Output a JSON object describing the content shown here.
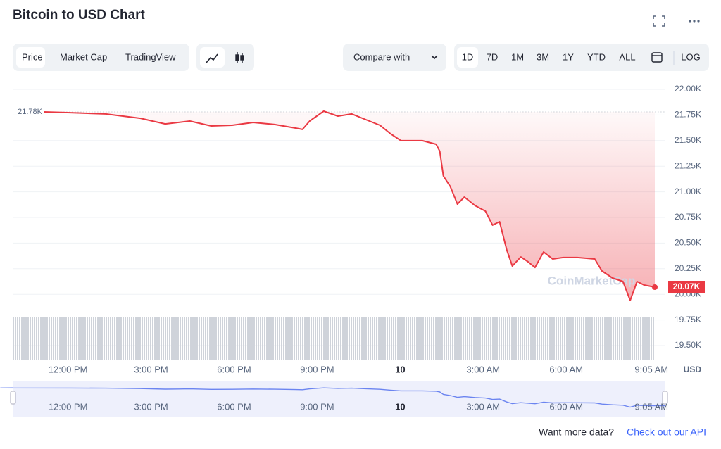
{
  "header": {
    "title": "Bitcoin to USD Chart"
  },
  "toolbar": {
    "tabs": [
      "Price",
      "Market Cap",
      "TradingView"
    ],
    "compare": "Compare with",
    "ranges": [
      "1D",
      "7D",
      "1M",
      "3M",
      "1Y",
      "YTD",
      "ALL"
    ],
    "log": "LOG"
  },
  "chart_data": {
    "type": "line",
    "color": "#ea3943",
    "watermark": "CoinMarketCap",
    "y_axis_label": "USD",
    "x": [
      11.13,
      12.08,
      13.35,
      14.62,
      15.51,
      16.4,
      17.17,
      17.93,
      18.69,
      19.46,
      20.22,
      20.47,
      20.73,
      21.24,
      21.75,
      22.25,
      22.76,
      23.27,
      23.65,
      24.03,
      24.8,
      25.3,
      25.43,
      25.56,
      25.81,
      26.07,
      26.32,
      26.7,
      27.08,
      27.34,
      27.59,
      27.85,
      28.05,
      28.36,
      28.62,
      28.87,
      29.18,
      29.51,
      29.89,
      30.4,
      31.03,
      31.29,
      31.67,
      32.05,
      32.31,
      32.56,
      32.81,
      33.2
    ],
    "values": [
      21780,
      21773,
      21760,
      21718,
      21663,
      21691,
      21643,
      21650,
      21677,
      21657,
      21622,
      21609,
      21691,
      21787,
      21739,
      21760,
      21705,
      21650,
      21567,
      21499,
      21499,
      21464,
      21396,
      21155,
      21052,
      20880,
      20949,
      20867,
      20812,
      20675,
      20709,
      20434,
      20276,
      20365,
      20317,
      20262,
      20413,
      20345,
      20359,
      20359,
      20345,
      20228,
      20159,
      20125,
      19940,
      20125,
      20091,
      20070
    ],
    "value_labels": [
      "21.78K",
      null,
      null,
      null,
      null,
      null,
      null,
      null,
      null,
      null,
      null,
      null,
      null,
      null,
      null,
      null,
      null,
      null,
      null,
      null,
      null,
      null,
      null,
      null,
      null,
      null,
      null,
      null,
      null,
      null,
      null,
      null,
      null,
      null,
      null,
      null,
      null,
      null,
      null,
      null,
      null,
      null,
      null,
      null,
      null,
      null,
      null,
      "20.07K"
    ],
    "xlim": [
      10,
      33.2
    ],
    "xticks": [
      {
        "value": 12,
        "label": "12:00 PM"
      },
      {
        "value": 15,
        "label": "3:00 PM"
      },
      {
        "value": 18,
        "label": "6:00 PM"
      },
      {
        "value": 21,
        "label": "9:00 PM"
      },
      {
        "value": 24,
        "label": "10"
      },
      {
        "value": 27,
        "label": "3:00 AM"
      },
      {
        "value": 30,
        "label": "6:00 AM"
      },
      {
        "value": 33.08,
        "label": "9:05 AM"
      }
    ],
    "ylim": [
      19500,
      22000
    ],
    "yticks": [
      {
        "value": 22000,
        "label": "22.00K"
      },
      {
        "value": 21750,
        "label": "21.75K"
      },
      {
        "value": 21500,
        "label": "21.50K"
      },
      {
        "value": 21250,
        "label": "21.25K"
      },
      {
        "value": 21000,
        "label": "21.00K"
      },
      {
        "value": 20750,
        "label": "20.75K"
      },
      {
        "value": 20500,
        "label": "20.50K"
      },
      {
        "value": 20250,
        "label": "20.25K"
      },
      {
        "value": 20000,
        "label": "20.00K"
      },
      {
        "value": 19750,
        "label": "19.75K"
      },
      {
        "value": 19500,
        "label": "19.50K"
      }
    ],
    "grid": true
  },
  "footer": {
    "prompt": "Want more data?",
    "link": "Check out our API"
  }
}
